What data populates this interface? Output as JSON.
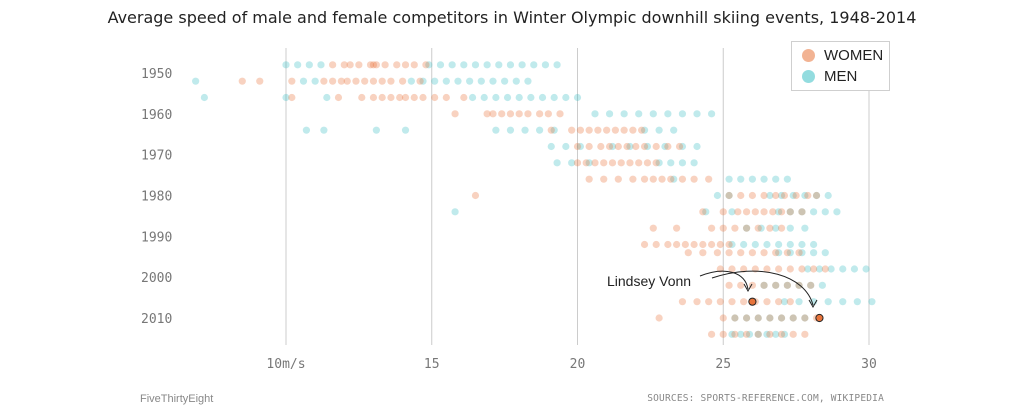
{
  "title": "Average speed of male and female competitors in Winter Olympic downhill skiing events, 1948-2014",
  "legend": {
    "women_label": "WOMEN",
    "men_label": "MEN"
  },
  "colors": {
    "women": "#e8743b",
    "men": "#3bbfc4",
    "grid": "#cccccc",
    "highlight_outline": "#222222"
  },
  "annotation": {
    "label": "Lindsey Vonn"
  },
  "footer": {
    "left": "FiveThirtyEight",
    "right": "SOURCES: SPORTS-REFERENCE.COM, WIKIPEDIA"
  },
  "chart_data": {
    "type": "scatter",
    "title": "Average speed of male and female competitors in Winter Olympic downhill skiing events, 1948-2014",
    "xlabel": "",
    "ylabel": "",
    "x_unit": "m/s",
    "xlim": [
      5.5,
      31
    ],
    "x_ticks": [
      {
        "value": 10,
        "label": "10m/s"
      },
      {
        "value": 15,
        "label": "15"
      },
      {
        "value": 20,
        "label": "20"
      },
      {
        "value": 25,
        "label": "25"
      },
      {
        "value": 30,
        "label": "30"
      }
    ],
    "y_ticks": [
      {
        "value": 1950,
        "label": "1950"
      },
      {
        "value": 1960,
        "label": "1960"
      },
      {
        "value": 1970,
        "label": "1970"
      },
      {
        "value": 1980,
        "label": "1980"
      },
      {
        "value": 1990,
        "label": "1990"
      },
      {
        "value": 2000,
        "label": "2000"
      },
      {
        "value": 2010,
        "label": "2010"
      }
    ],
    "ylim": [
      1945,
      2016
    ],
    "grid": "vertical",
    "legend_position": "top-right",
    "series": [
      {
        "name": "WOMEN",
        "color": "#e8743b",
        "events": [
          {
            "year": 1948,
            "speeds": [
              11.6,
              12.0,
              12.5,
              12.9,
              13.1,
              13.4,
              13.8,
              14.1,
              14.4,
              14.8,
              12.2,
              13.0
            ]
          },
          {
            "year": 1952,
            "speeds": [
              8.5,
              9.1,
              11.3,
              11.6,
              11.9,
              12.1,
              12.4,
              12.7,
              13.0,
              13.3,
              13.6,
              14.0,
              14.6,
              10.2
            ]
          },
          {
            "year": 1956,
            "speeds": [
              10.2,
              11.8,
              12.6,
              13.0,
              13.3,
              13.6,
              13.9,
              14.1,
              14.4,
              14.7,
              15.1,
              15.5,
              16.1
            ]
          },
          {
            "year": 1960,
            "speeds": [
              16.9,
              17.1,
              17.4,
              17.7,
              18.0,
              18.3,
              18.7,
              19.0,
              19.4,
              15.8
            ]
          },
          {
            "year": 1964,
            "speeds": [
              19.1,
              19.8,
              20.1,
              20.4,
              20.7,
              21.0,
              21.3,
              21.6,
              21.9,
              22.2
            ]
          },
          {
            "year": 1968,
            "speeds": [
              20.0,
              20.4,
              20.8,
              21.1,
              21.4,
              21.7,
              22.0,
              22.3,
              22.7,
              23.1,
              23.5
            ]
          },
          {
            "year": 1972,
            "speeds": [
              20.0,
              20.3,
              20.6,
              20.9,
              21.2,
              21.5,
              21.8,
              22.1,
              22.4,
              22.7
            ]
          },
          {
            "year": 1976,
            "speeds": [
              20.4,
              20.9,
              21.4,
              21.9,
              22.3,
              22.6,
              22.9,
              23.2,
              23.6,
              24.0,
              24.5
            ]
          },
          {
            "year": 1980,
            "speeds": [
              16.5,
              25.2,
              25.6,
              26.0,
              26.4,
              26.8,
              27.1,
              27.5,
              27.9,
              28.2
            ]
          },
          {
            "year": 1984,
            "speeds": [
              24.3,
              25.0,
              25.5,
              25.8,
              26.1,
              26.4,
              26.7,
              27.0,
              27.3,
              27.7
            ]
          },
          {
            "year": 1988,
            "speeds": [
              22.6,
              23.4,
              24.6,
              25.0,
              25.4,
              25.8,
              26.2,
              26.6,
              27.0
            ]
          },
          {
            "year": 1992,
            "speeds": [
              22.3,
              22.7,
              23.1,
              23.4,
              23.7,
              24.0,
              24.3,
              24.6,
              24.9,
              25.2
            ]
          },
          {
            "year": 1994,
            "speeds": [
              23.8,
              24.3,
              24.8,
              25.2,
              25.6,
              26.0,
              26.4,
              26.8,
              27.2,
              27.6
            ]
          },
          {
            "year": 1998,
            "speeds": [
              24.9,
              25.3,
              25.7,
              26.1,
              26.5,
              26.9,
              27.3,
              27.7,
              28.1,
              28.5
            ]
          },
          {
            "year": 2002,
            "speeds": [
              25.2,
              25.6,
              26.0,
              26.4,
              26.8,
              27.2,
              27.6,
              28.0
            ]
          },
          {
            "year": 2006,
            "speeds": [
              23.6,
              24.1,
              24.5,
              24.9,
              25.3,
              25.7,
              26.1,
              26.5,
              26.9,
              27.3
            ]
          },
          {
            "year": 2010,
            "speeds": [
              22.8,
              25.0,
              25.4,
              25.8,
              26.2,
              26.6,
              27.0,
              27.4,
              27.8,
              28.2
            ]
          },
          {
            "year": 2014,
            "speeds": [
              24.6,
              25.0,
              25.4,
              25.8,
              26.2,
              26.6,
              27.0,
              27.4,
              27.8
            ]
          }
        ]
      },
      {
        "name": "MEN",
        "color": "#3bbfc4",
        "events": [
          {
            "year": 1948,
            "speeds": [
              10.0,
              10.4,
              10.8,
              11.2,
              14.9,
              15.3,
              15.7,
              16.1,
              16.5,
              16.9,
              17.3,
              17.7,
              18.1,
              18.5,
              18.9,
              19.3
            ]
          },
          {
            "year": 1952,
            "speeds": [
              6.9,
              10.6,
              11.0,
              14.3,
              14.7,
              15.1,
              15.5,
              15.9,
              16.3,
              16.7,
              17.1,
              17.5,
              17.9,
              18.3
            ]
          },
          {
            "year": 1956,
            "speeds": [
              7.2,
              10.0,
              11.4,
              16.4,
              16.8,
              17.2,
              17.6,
              18.0,
              18.4,
              18.8,
              19.2,
              19.6,
              20.0
            ]
          },
          {
            "year": 1960,
            "speeds": [
              20.6,
              21.1,
              21.6,
              22.1,
              22.6,
              23.1,
              23.6,
              24.1,
              24.6
            ]
          },
          {
            "year": 1964,
            "speeds": [
              10.7,
              11.3,
              13.1,
              14.1,
              17.2,
              17.7,
              18.2,
              18.7,
              19.2,
              22.3,
              22.8,
              23.3
            ]
          },
          {
            "year": 1968,
            "speeds": [
              19.1,
              19.6,
              20.1,
              21.2,
              21.8,
              22.4,
              23.0,
              23.6,
              24.1
            ]
          },
          {
            "year": 1972,
            "speeds": [
              19.3,
              19.8,
              20.4,
              22.8,
              23.2,
              23.6,
              24.0
            ]
          },
          {
            "year": 1976,
            "speeds": [
              23.3,
              25.2,
              25.6,
              26.0,
              26.4,
              26.8,
              27.2
            ]
          },
          {
            "year": 1980,
            "speeds": [
              24.8,
              25.2,
              26.6,
              27.0,
              27.4,
              27.8,
              28.2,
              28.6
            ]
          },
          {
            "year": 1984,
            "speeds": [
              15.8,
              24.4,
              25.3,
              26.9,
              27.3,
              27.7,
              28.1,
              28.5,
              28.9
            ]
          },
          {
            "year": 1988,
            "speeds": [
              25.8,
              26.3,
              26.8,
              27.3,
              27.8
            ]
          },
          {
            "year": 1992,
            "speeds": [
              25.3,
              25.7,
              26.1,
              26.5,
              26.9,
              27.3,
              27.7,
              28.1
            ]
          },
          {
            "year": 1994,
            "speeds": [
              26.9,
              27.3,
              27.7,
              28.1,
              28.5
            ]
          },
          {
            "year": 1998,
            "speeds": [
              27.9,
              28.3,
              28.7,
              29.1,
              29.5,
              29.9
            ]
          },
          {
            "year": 2002,
            "speeds": [
              26.4,
              26.8,
              27.2,
              27.6,
              28.0,
              28.4
            ]
          },
          {
            "year": 2006,
            "speeds": [
              27.1,
              27.6,
              28.1,
              28.6,
              29.1,
              29.6,
              30.1
            ]
          },
          {
            "year": 2010,
            "speeds": [
              25.4,
              25.8,
              26.2,
              26.6,
              27.0,
              27.4,
              27.8
            ]
          },
          {
            "year": 2014,
            "speeds": [
              25.3,
              25.6,
              25.9,
              26.2,
              26.5,
              26.8,
              27.1
            ]
          }
        ]
      }
    ],
    "highlights": [
      {
        "label": "Lindsey Vonn",
        "year": 2006,
        "speed": 26.0,
        "series": "WOMEN"
      },
      {
        "label": "Lindsey Vonn",
        "year": 2010,
        "speed": 28.3,
        "series": "WOMEN"
      }
    ]
  }
}
